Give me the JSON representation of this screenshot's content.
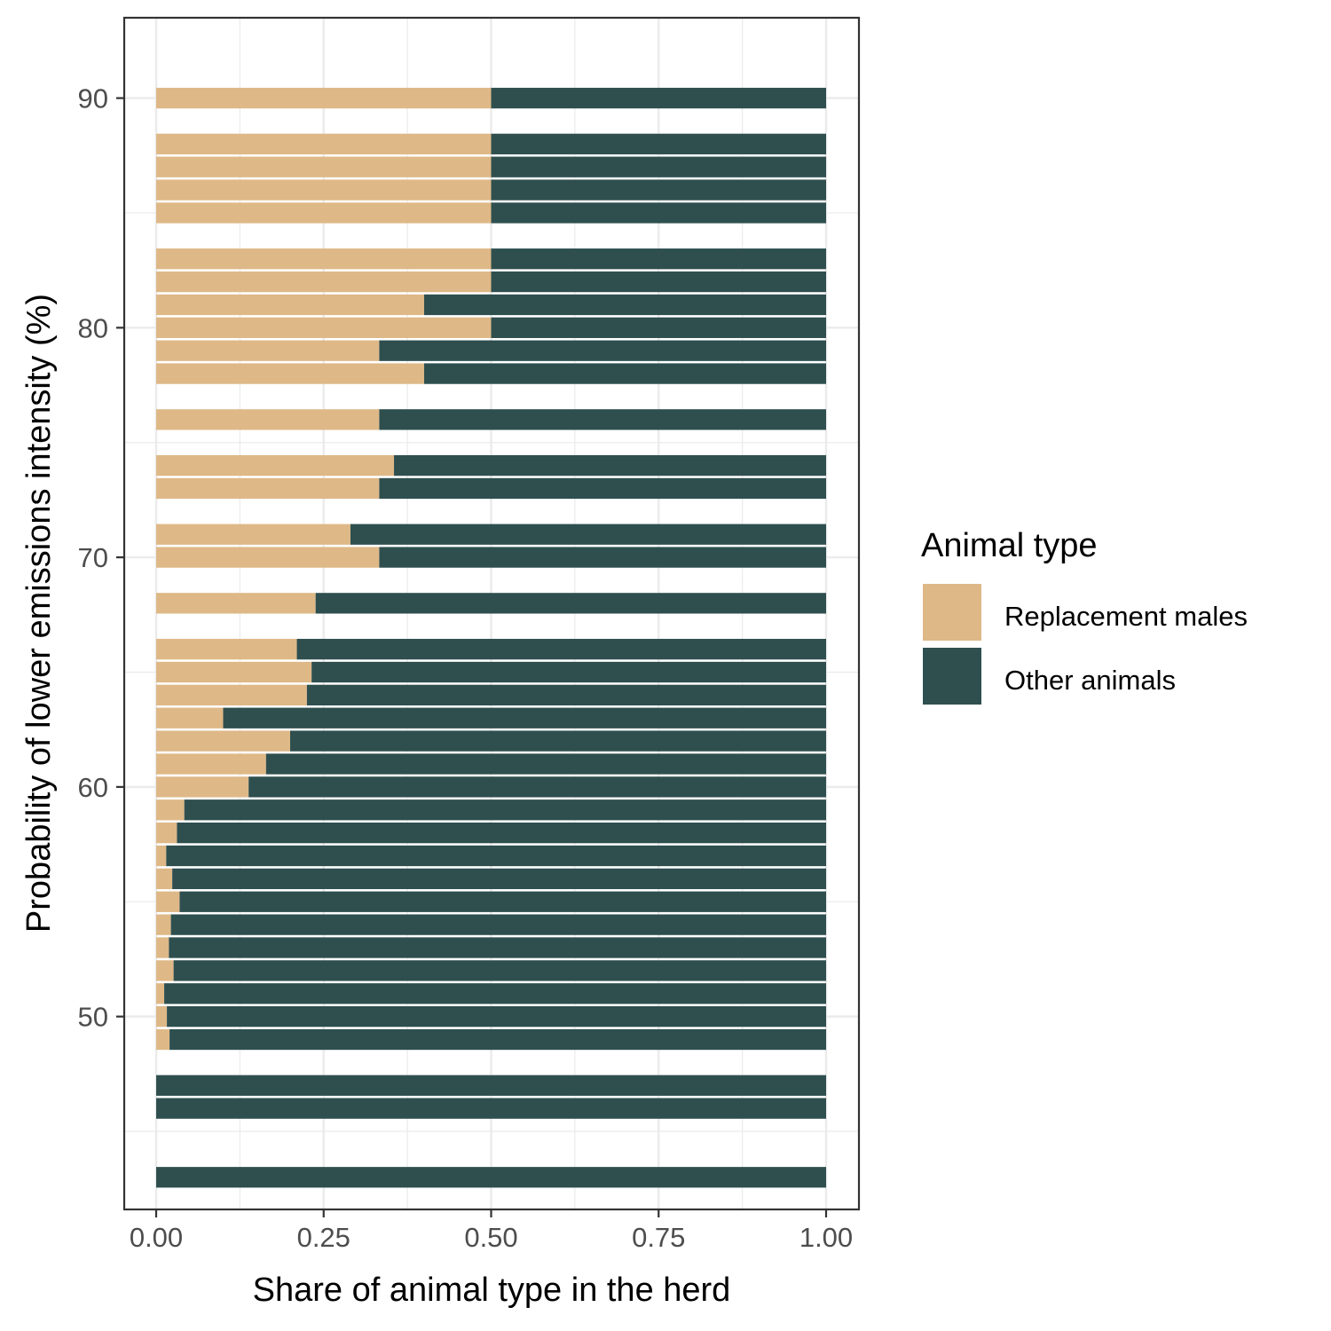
{
  "chart_data": {
    "type": "bar",
    "orientation": "horizontal",
    "stacked": true,
    "xlabel": "Share of animal type in the herd",
    "ylabel": "Probability of lower emissions intensity (%)",
    "xlim": [
      0,
      1
    ],
    "ylim": [
      41.6,
      93.5
    ],
    "x_ticks": [
      0,
      0.25,
      0.5,
      0.75,
      1
    ],
    "x_tick_labels": [
      "0.00",
      "0.25",
      "0.50",
      "0.75",
      "1.00"
    ],
    "y_ticks": [
      50,
      60,
      70,
      80,
      90
    ],
    "y_tick_labels": [
      "50",
      "60",
      "70",
      "80",
      "90"
    ],
    "grid": true,
    "legend": {
      "title": "Animal type",
      "position": "right",
      "entries": [
        "Replacement males",
        "Other animals"
      ]
    },
    "colors": {
      "Replacement males": "#deb887",
      "Other animals": "#2f4f4f"
    },
    "y": [
      90,
      88,
      87,
      86,
      85,
      83,
      82,
      81,
      80,
      79,
      78,
      76,
      74,
      73,
      71,
      70,
      68,
      66,
      65,
      64,
      63,
      62,
      61,
      60,
      59,
      58,
      57,
      56,
      55,
      54,
      53,
      52,
      51,
      50,
      49,
      47,
      46,
      43
    ],
    "series": [
      {
        "name": "Replacement males",
        "values": [
          0.5,
          0.5,
          0.5,
          0.5,
          0.5,
          0.5,
          0.5,
          0.4,
          0.5,
          0.333,
          0.4,
          0.333,
          0.355,
          0.333,
          0.29,
          0.333,
          0.238,
          0.21,
          0.232,
          0.225,
          0.1,
          0.2,
          0.164,
          0.138,
          0.042,
          0.031,
          0.015,
          0.024,
          0.035,
          0.022,
          0.019,
          0.026,
          0.012,
          0.016,
          0.02,
          0,
          0,
          0
        ]
      },
      {
        "name": "Other animals",
        "values": [
          0.5,
          0.5,
          0.5,
          0.5,
          0.5,
          0.5,
          0.5,
          0.6,
          0.5,
          0.667,
          0.6,
          0.667,
          0.645,
          0.667,
          0.71,
          0.667,
          0.762,
          0.79,
          0.768,
          0.775,
          0.9,
          0.8,
          0.836,
          0.862,
          0.958,
          0.969,
          0.985,
          0.976,
          0.965,
          0.978,
          0.981,
          0.974,
          0.988,
          0.984,
          0.98,
          1,
          1,
          1
        ]
      }
    ]
  }
}
